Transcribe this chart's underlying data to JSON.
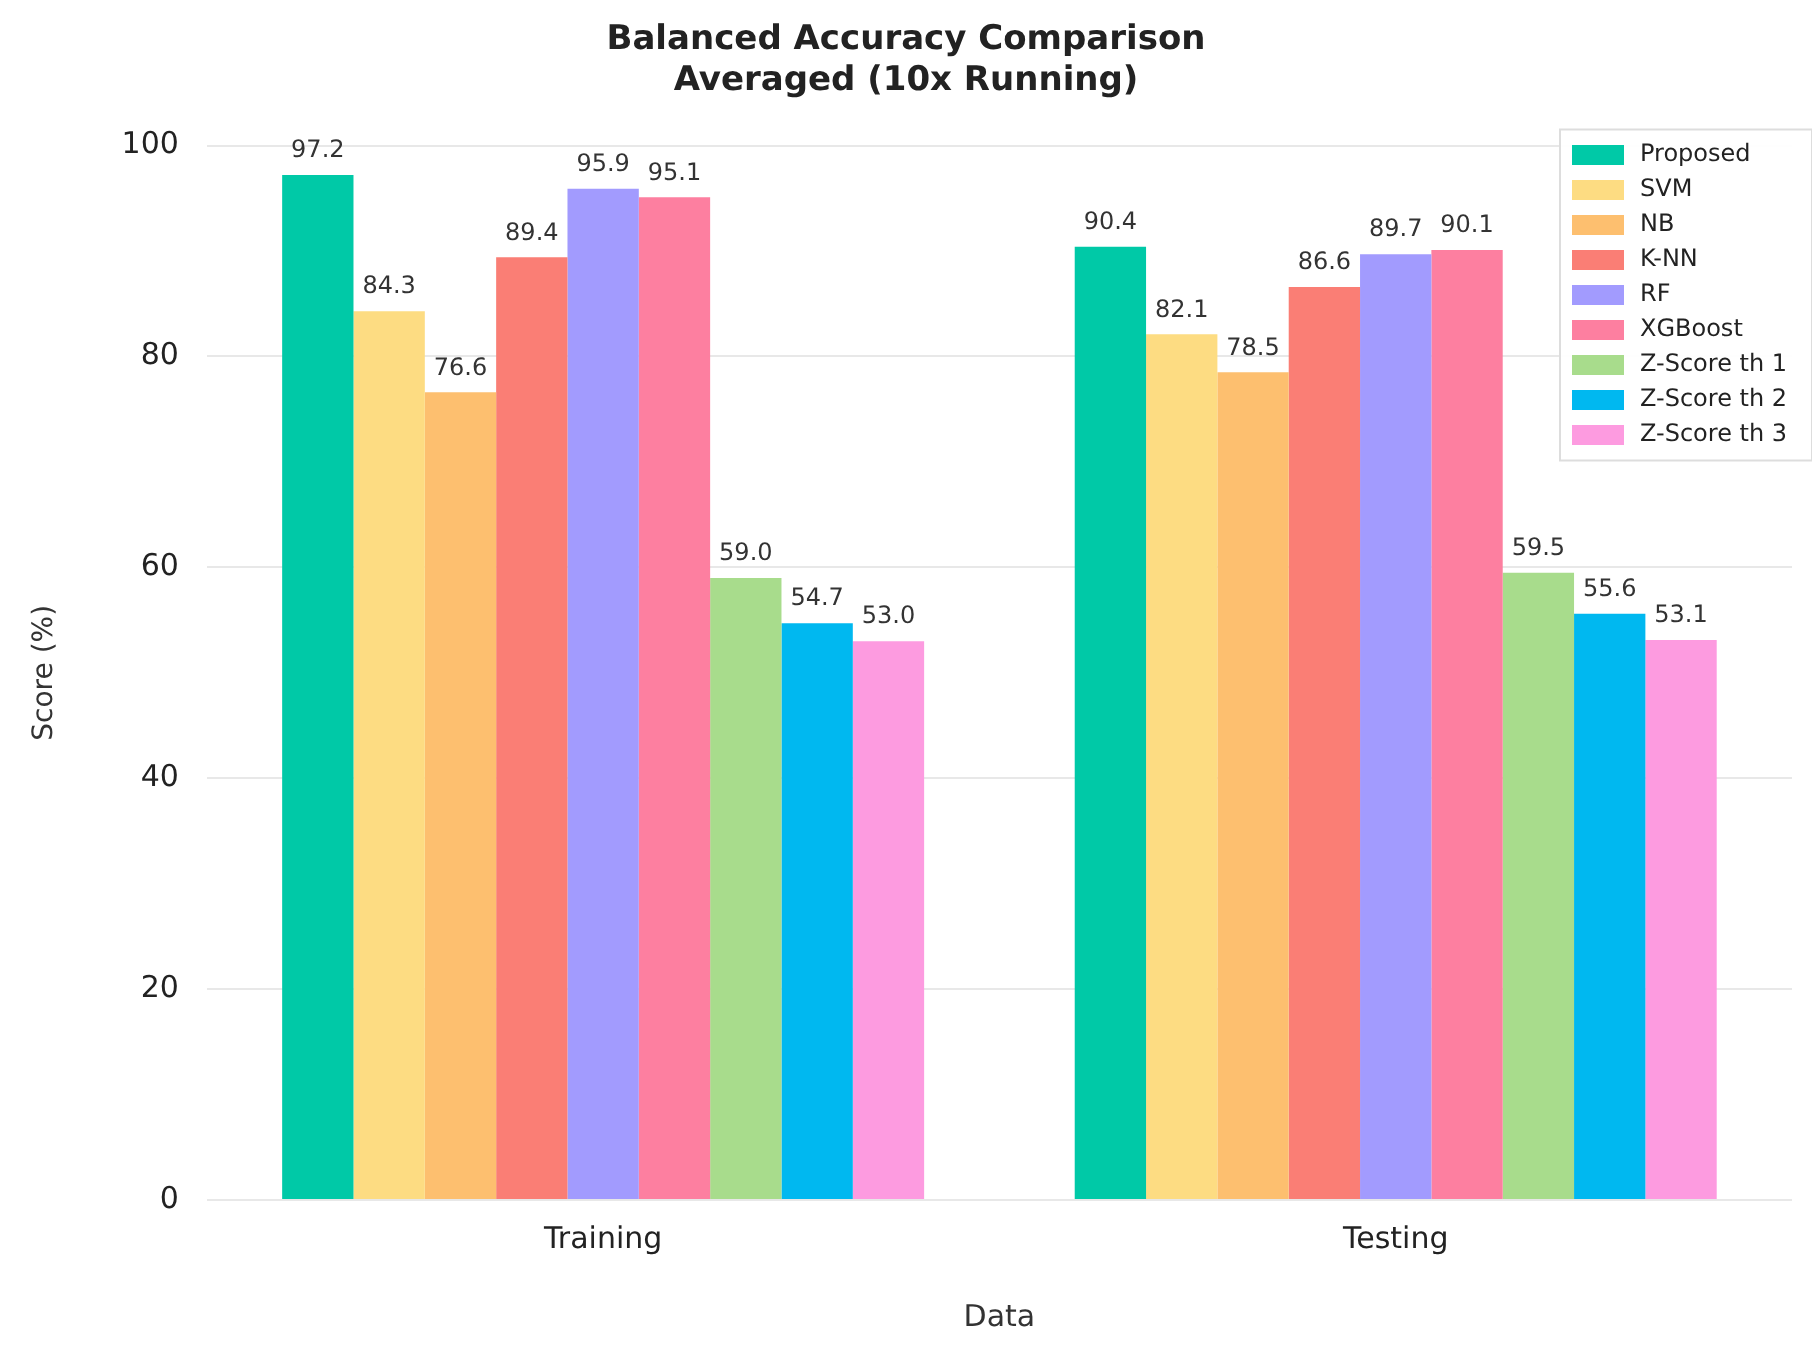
{
  "chart_data": {
    "type": "bar",
    "title": "Balanced Accuracy Comparison\nAveraged (10x Running)",
    "xlabel": "Data",
    "ylabel": "Score (%)",
    "categories": [
      "Training",
      "Testing"
    ],
    "series": [
      {
        "name": "Proposed",
        "color": "#00c9a7",
        "values": [
          97.2,
          90.4
        ],
        "value_labels": [
          "97.2",
          "90.4"
        ]
      },
      {
        "name": "SVM",
        "color": "#fddc82",
        "values": [
          84.3,
          82.1
        ],
        "value_labels": [
          "84.3",
          "82.1"
        ]
      },
      {
        "name": "NB",
        "color": "#fdbf6f",
        "values": [
          76.6,
          78.5
        ],
        "value_labels": [
          "76.6",
          "78.5"
        ]
      },
      {
        "name": "K-NN",
        "color": "#fa7e75",
        "values": [
          89.4,
          86.6
        ],
        "value_labels": [
          "89.4",
          "86.6"
        ]
      },
      {
        "name": "RF",
        "color": "#a29bfe",
        "values": [
          95.9,
          89.7
        ],
        "value_labels": [
          "95.9",
          "89.7"
        ]
      },
      {
        "name": "XGBoost",
        "color": "#fd7fa0",
        "values": [
          95.1,
          90.1
        ],
        "value_labels": [
          "95.1",
          "90.1"
        ]
      },
      {
        "name": "Z-Score th 1",
        "color": "#a8dc8c",
        "values": [
          59,
          59.5
        ],
        "value_labels": [
          "59.0",
          "59.5"
        ]
      },
      {
        "name": "Z-Score th 2",
        "color": "#00b8f0",
        "values": [
          54.7,
          55.6
        ],
        "value_labels": [
          "54.7",
          "55.6"
        ]
      },
      {
        "name": "Z-Score th 3",
        "color": "#fd9be0",
        "values": [
          53,
          53.1
        ],
        "value_labels": [
          "53.0",
          "53.1"
        ]
      }
    ],
    "ylim": [
      0,
      100
    ],
    "yticks": [
      0,
      20,
      40,
      60,
      80,
      100
    ],
    "grid": "y",
    "legend": "top right"
  }
}
